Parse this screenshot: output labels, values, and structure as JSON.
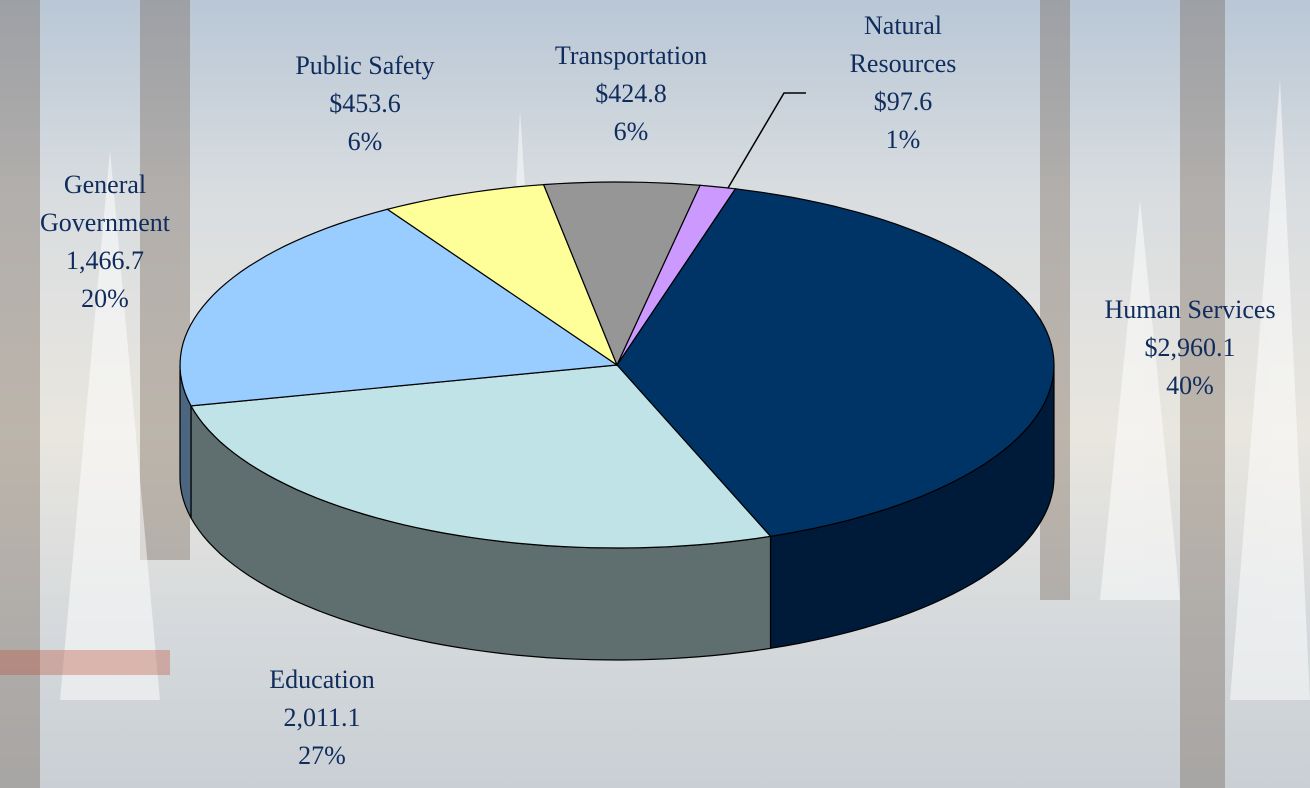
{
  "chart_data": {
    "type": "pie3d",
    "categories": [
      "Human Services",
      "Education",
      "General Government",
      "Public Safety",
      "Transportation",
      "Natural Resources"
    ],
    "values": [
      2960.1,
      2011.1,
      1466.7,
      453.6,
      424.8,
      97.6
    ],
    "value_labels": [
      "$2,960.1",
      "2,011.1",
      "1,466.7",
      "$453.6",
      "$424.8",
      "$97.6"
    ],
    "percent_labels": [
      "40%",
      "27%",
      "20%",
      "6%",
      "6%",
      "1%"
    ],
    "colors": [
      "#003366",
      "#bfe3e6",
      "#99ccff",
      "#ffff99",
      "#969696",
      "#cc99ff"
    ],
    "side_colors": [
      "#001a3a",
      "#5f6e6e",
      "#4d6680",
      "#80804d",
      "#4b4b4b",
      "#664d80"
    ]
  }
}
